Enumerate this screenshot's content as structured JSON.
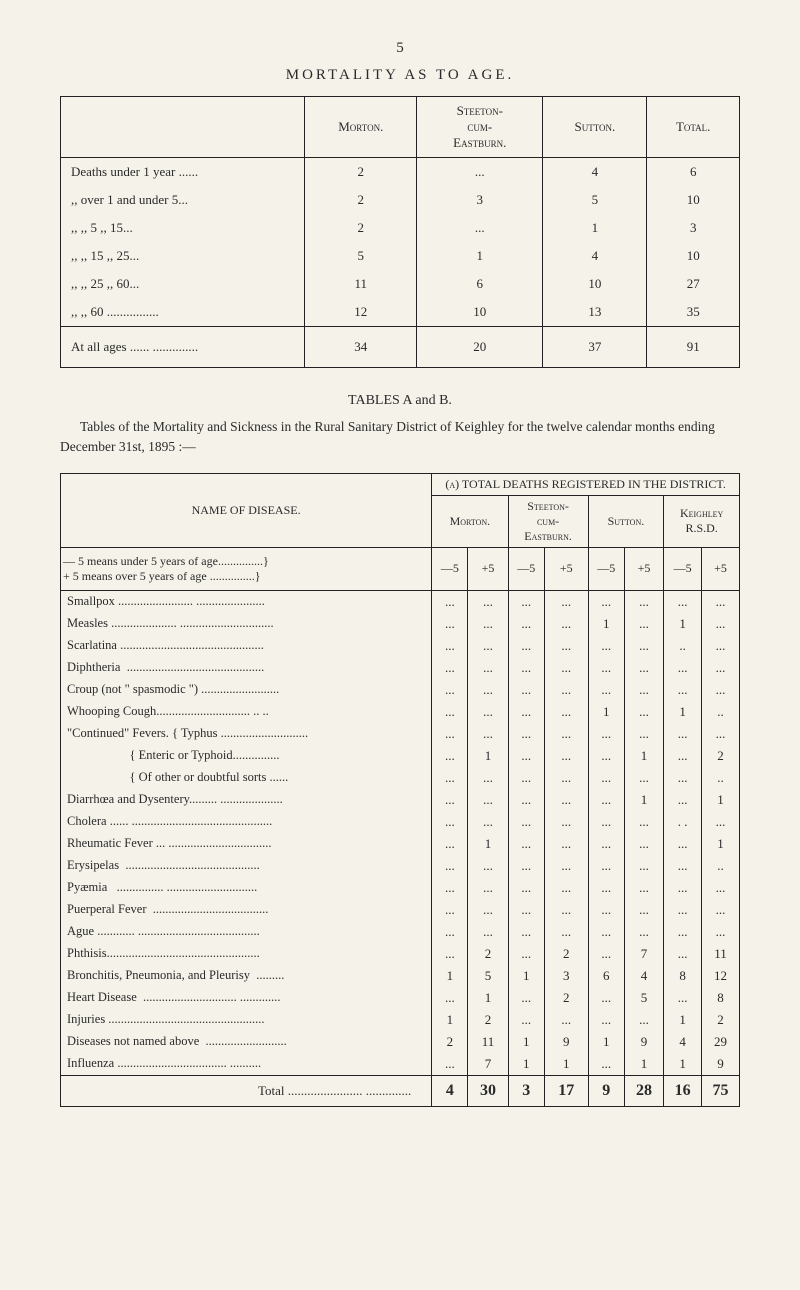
{
  "page_number": "5",
  "title1": "MORTALITY   AS   TO   AGE.",
  "table1": {
    "headers": [
      "",
      "Morton.",
      "Steeton-cum-Eastburn.",
      "Sutton.",
      "Total."
    ],
    "rows": [
      {
        "label": "Deaths under 1 year  ......",
        "cells": [
          "2",
          "...",
          "4",
          "6"
        ]
      },
      {
        "label": ",,   over 1 and under 5...",
        "cells": [
          "2",
          "3",
          "5",
          "10"
        ]
      },
      {
        "label": ",,    ,, 5     ,,    15...",
        "cells": [
          "2",
          "...",
          "1",
          "3"
        ]
      },
      {
        "label": ",,    ,, 15    ,,    25...",
        "cells": [
          "5",
          "1",
          "4",
          "10"
        ]
      },
      {
        "label": ",,    ,, 25    ,,    60...",
        "cells": [
          "11",
          "6",
          "10",
          "27"
        ]
      },
      {
        "label": ",,    ,, 60 ................",
        "cells": [
          "12",
          "10",
          "13",
          "35"
        ]
      }
    ],
    "total": {
      "label": "At all ages  ......  ..............",
      "cells": [
        "34",
        "20",
        "37",
        "91"
      ]
    }
  },
  "subheader": "TABLES A and B.",
  "intro": "Tables of the Mortality and Sickness in the Rural Sanitary District of Keighley for the twelve calendar months ending December 31st, 1895 :—",
  "table2": {
    "name_header": "NAME OF DISEASE.",
    "deaths_header": "(a) TOTAL DEATHS REGISTERED IN THE DISTRICT.",
    "col_headers": [
      "Morton.",
      "Steeton-cum-Eastburn.",
      "Sutton.",
      "Keighley R.S.D."
    ],
    "age_row_label": "— 5 means under 5 years of age...............\n+ 5 means over 5 years of age  ...............",
    "age_cells": [
      "—5",
      "+5",
      "—5",
      "+5",
      "—5",
      "+5",
      "—5",
      "+5"
    ],
    "rows": [
      {
        "name": "Smallpox ........................ ......................",
        "cells": [
          "...",
          "...",
          "...",
          "...",
          "...",
          "...",
          "...",
          "..."
        ]
      },
      {
        "name": "Measles ..................... ..............................",
        "cells": [
          "...",
          "...",
          "...",
          "...",
          "1",
          "...",
          "1",
          "..."
        ]
      },
      {
        "name": "Scarlatina ..............................................",
        "cells": [
          "...",
          "...",
          "...",
          "...",
          "...",
          "...",
          "..",
          "..."
        ]
      },
      {
        "name": "Diphtheria  ............................................",
        "cells": [
          "...",
          "...",
          "...",
          "...",
          "...",
          "...",
          "...",
          "..."
        ]
      },
      {
        "name": "Croup (not \" spasmodic \") .........................",
        "cells": [
          "...",
          "...",
          "...",
          "...",
          "...",
          "...",
          "...",
          "..."
        ]
      },
      {
        "name": "Whooping Cough.............................. .. ..",
        "cells": [
          "...",
          "...",
          "...",
          "...",
          "1",
          "...",
          "1",
          ".."
        ]
      },
      {
        "name": "\"Continued\" Fevers. { Typhus ............................",
        "cells": [
          "...",
          "...",
          "...",
          "...",
          "...",
          "...",
          "...",
          "..."
        ]
      },
      {
        "name": "                    { Enteric or Typhoid...............",
        "cells": [
          "...",
          "1",
          "...",
          "...",
          "...",
          "1",
          "...",
          "2"
        ]
      },
      {
        "name": "                    { Of other or doubtful sorts ......",
        "cells": [
          "...",
          "...",
          "...",
          "...",
          "...",
          "...",
          "...",
          ".."
        ]
      },
      {
        "name": "Diarrhœa and Dysentery......... ....................",
        "cells": [
          "...",
          "...",
          "...",
          "...",
          "...",
          "1",
          "...",
          "1"
        ]
      },
      {
        "name": "Cholera ...... .............................................",
        "cells": [
          "...",
          "...",
          "...",
          "...",
          "...",
          "...",
          ". .",
          "..."
        ]
      },
      {
        "name": "Rheumatic Fever ... .................................",
        "cells": [
          "...",
          "1",
          "...",
          "...",
          "...",
          "...",
          "...",
          "1"
        ]
      },
      {
        "name": "Erysipelas  ...........................................",
        "cells": [
          "...",
          "...",
          "...",
          "...",
          "...",
          "...",
          "...",
          ".."
        ]
      },
      {
        "name": "Pyæmia   ............... .............................",
        "cells": [
          "...",
          "...",
          "...",
          "...",
          "...",
          "...",
          "...",
          "..."
        ]
      },
      {
        "name": "Puerperal Fever  .....................................",
        "cells": [
          "...",
          "...",
          "...",
          "...",
          "...",
          "...",
          "...",
          "..."
        ]
      },
      {
        "name": "Ague ............ .......................................",
        "cells": [
          "...",
          "...",
          "...",
          "...",
          "...",
          "...",
          "...",
          "..."
        ]
      },
      {
        "name": "Phthisis.................................................",
        "cells": [
          "...",
          "2",
          "...",
          "2",
          "...",
          "7",
          "...",
          "11"
        ]
      },
      {
        "name": "Bronchitis, Pneumonia, and Pleurisy  .........",
        "cells": [
          "1",
          "5",
          "1",
          "3",
          "6",
          "4",
          "8",
          "12"
        ]
      },
      {
        "name": "Heart Disease  .............................. .............",
        "cells": [
          "...",
          "1",
          "...",
          "2",
          "...",
          "5",
          "...",
          "8"
        ]
      },
      {
        "name": "Injuries ..................................................",
        "cells": [
          "1",
          "2",
          "...",
          "...",
          "...",
          "...",
          "1",
          "2"
        ]
      },
      {
        "name": "Diseases not named above  ..........................",
        "cells": [
          "2",
          "11",
          "1",
          "9",
          "1",
          "9",
          "4",
          "29"
        ]
      },
      {
        "name": "Influenza ................................... ..........",
        "cells": [
          "...",
          "7",
          "1",
          "1",
          "...",
          "1",
          "1",
          "9"
        ]
      }
    ],
    "total": {
      "name": "Total ....................... ..............",
      "cells": [
        "4",
        "30",
        "3",
        "17",
        "9",
        "28",
        "16",
        "75"
      ]
    }
  }
}
